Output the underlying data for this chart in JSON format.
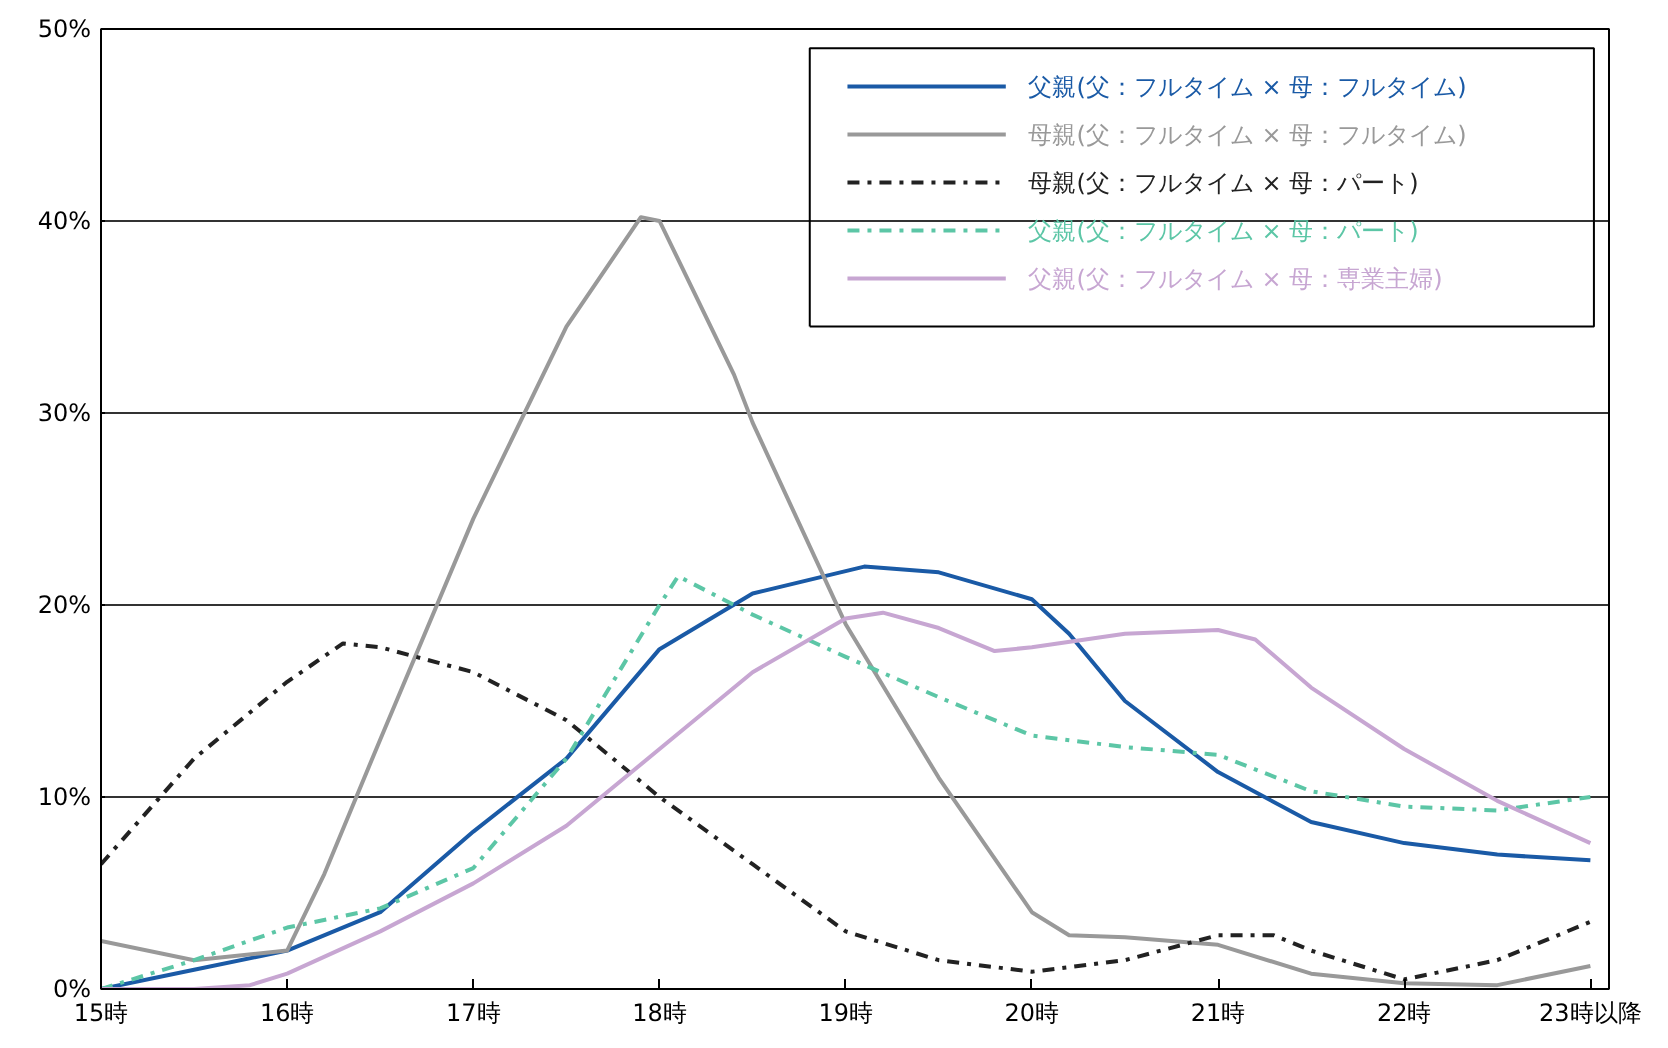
{
  "chart_data": {
    "type": "line",
    "xlim": [
      15,
      23.1
    ],
    "ylim": [
      0,
      50
    ],
    "xticks": [
      {
        "value": 15,
        "label": "15時"
      },
      {
        "value": 16,
        "label": "16時"
      },
      {
        "value": 17,
        "label": "17時"
      },
      {
        "value": 18,
        "label": "18時"
      },
      {
        "value": 19,
        "label": "19時"
      },
      {
        "value": 20,
        "label": "20時"
      },
      {
        "value": 21,
        "label": "21時"
      },
      {
        "value": 22,
        "label": "22時"
      },
      {
        "value": 23,
        "label": "23時以降"
      }
    ],
    "yticks": [
      {
        "value": 0,
        "label": "0%"
      },
      {
        "value": 10,
        "label": "10%"
      },
      {
        "value": 20,
        "label": "20%"
      },
      {
        "value": 30,
        "label": "30%"
      },
      {
        "value": 40,
        "label": "40%"
      },
      {
        "value": 50,
        "label": "50%"
      }
    ],
    "grid": "y",
    "legend": "top right",
    "marker": "none",
    "series": [
      {
        "name": "父親(父：フルタイム × 母：フルタイム)",
        "color": "#1a5aa6",
        "line_style": "solid",
        "x": [
          15,
          15.5,
          16,
          16.5,
          17,
          17.5,
          18,
          18.5,
          19.1,
          19.5,
          20,
          20.2,
          20.5,
          21,
          21.5,
          22,
          22.5,
          23
        ],
        "values": [
          0,
          1,
          2,
          4,
          8.2,
          12,
          17.7,
          20.6,
          22,
          21.7,
          20.3,
          18.5,
          15,
          11.3,
          8.7,
          7.6,
          7,
          6.7
        ]
      },
      {
        "name": "母親(父：フルタイム × 母：フルタイム)",
        "color": "#999999",
        "line_style": "solid",
        "x": [
          15,
          15.5,
          16,
          16.2,
          16.5,
          17,
          17.5,
          17.9,
          18,
          18.4,
          18.5,
          19,
          19.5,
          20,
          20.2,
          20.5,
          21,
          21.5,
          22,
          22.5,
          23
        ],
        "values": [
          2.5,
          1.5,
          2,
          6,
          13,
          24.5,
          34.5,
          40.2,
          40,
          32,
          29.5,
          19,
          11,
          4,
          2.8,
          2.7,
          2.3,
          0.8,
          0.3,
          0.2,
          1.2
        ]
      },
      {
        "name": "母親(父：フルタイム × 母：パート)",
        "color": "#222222",
        "line_style": "dashdot",
        "x": [
          15,
          15.5,
          16,
          16.3,
          16.5,
          17,
          17.5,
          18,
          18.5,
          19,
          19.5,
          20,
          20.5,
          21,
          21.3,
          21.5,
          22,
          22.5,
          23
        ],
        "values": [
          6.5,
          12,
          16,
          18,
          17.8,
          16.5,
          14,
          10,
          6.5,
          3,
          1.5,
          0.9,
          1.5,
          2.8,
          2.8,
          2,
          0.5,
          1.5,
          3.5
        ]
      },
      {
        "name": "父親(父：フルタイム × 母：パート)",
        "color": "#5cc6a6",
        "line_style": "dashdot",
        "x": [
          15,
          15.5,
          16,
          16.5,
          17,
          17.5,
          18,
          18.1,
          18.5,
          19,
          19.5,
          20,
          20.5,
          21,
          21.5,
          22,
          22.5,
          23
        ],
        "values": [
          0,
          1.5,
          3.2,
          4.2,
          6.3,
          12,
          20,
          21.5,
          19.5,
          17.3,
          15.2,
          13.2,
          12.6,
          12.2,
          10.3,
          9.5,
          9.3,
          10
        ]
      },
      {
        "name": "父親(父：フルタイム × 母：専業主婦)",
        "color": "#c7a6d2",
        "line_style": "solid",
        "x": [
          15,
          15.5,
          15.8,
          16,
          16.5,
          17,
          17.5,
          18,
          18.5,
          19,
          19.2,
          19.5,
          19.8,
          20,
          20.5,
          21,
          21.2,
          21.5,
          22,
          22.5,
          23
        ],
        "values": [
          0,
          0,
          0.2,
          0.8,
          3,
          5.5,
          8.5,
          12.5,
          16.5,
          19.3,
          19.6,
          18.8,
          17.6,
          17.8,
          18.5,
          18.7,
          18.2,
          15.7,
          12.5,
          9.8,
          7.6
        ]
      }
    ]
  }
}
